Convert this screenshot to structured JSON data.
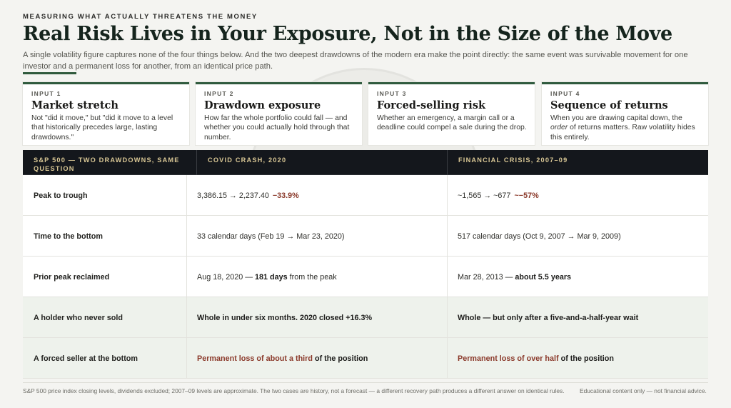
{
  "kicker": "MEASURING WHAT ACTUALLY THREATENS THE MONEY",
  "title": "Real Risk Lives in Your Exposure, Not in the Size of the Move",
  "subtitle": "A single volatility figure captures none of the four things below. And the two deepest drawdowns of the modern era make the point directly: the same event was survivable movement for one investor and a permanent loss for another, from an identical price path.",
  "cards": [
    {
      "label": "INPUT 1",
      "title": "Market stretch",
      "body": "Not \"did it move,\" but \"did it move to a level that historically precedes large, lasting drawdowns.\""
    },
    {
      "label": "INPUT 2",
      "title": "Drawdown exposure",
      "body": "How far the whole portfolio could fall — and whether you could actually hold through that number."
    },
    {
      "label": "INPUT 3",
      "title": "Forced-selling risk",
      "body": "Whether an emergency, a margin call or a deadline could compel a sale during the drop."
    },
    {
      "label": "INPUT 4",
      "title": "Sequence of returns",
      "body_pre": "When you are drawing capital down, the ",
      "body_em": "order",
      "body_post": " of returns matters. Raw volatility hides this entirely."
    }
  ],
  "table": {
    "headers": [
      "S&P 500 — TWO DRAWDOWNS, SAME QUESTION",
      "COVID CRASH, 2020",
      "FINANCIAL CRISIS, 2007–09"
    ],
    "rows": [
      {
        "label": "Peak to trough",
        "c1": "3,386.15 → 2,237.40",
        "c1_neg": "−33.9%",
        "c2": "~1,565 → ~677",
        "c2_neg": "~−57%"
      },
      {
        "label": "Time to the bottom",
        "c1": "33 calendar days (Feb 19 → Mar 23, 2020)",
        "c2": "517 calendar days (Oct 9, 2007 → Mar 9, 2009)"
      },
      {
        "label": "Prior peak reclaimed",
        "c1_pre": "Aug 18, 2020 — ",
        "c1_strong": "181 days",
        "c1_post": " from the peak",
        "c2_pre": "Mar 28, 2013 — ",
        "c2_strong": "about 5.5 years"
      },
      {
        "label": "A holder who never sold",
        "c1": "Whole in under six months. 2020 closed +16.3%",
        "c2": "Whole — but only after a five-and-a-half-year wait"
      },
      {
        "label": "A forced seller at the bottom",
        "c1_rust": "Permanent loss of about a third",
        "c1_post": " of the position",
        "c2_rust": "Permanent loss of over half",
        "c2_post": " of the position"
      }
    ]
  },
  "footnote": "S&P 500 price index closing levels, dividends excluded; 2007–09 levels are approximate. The two cases are history, not a forecast — a different recovery path produces a different answer on identical rules.",
  "disclaimer": "Educational content only — not financial advice.",
  "colors": {
    "accent": "#2f5a3d",
    "header_bg": "#14171c",
    "header_text": "#d9c795",
    "negative": "#8b3a2b"
  }
}
